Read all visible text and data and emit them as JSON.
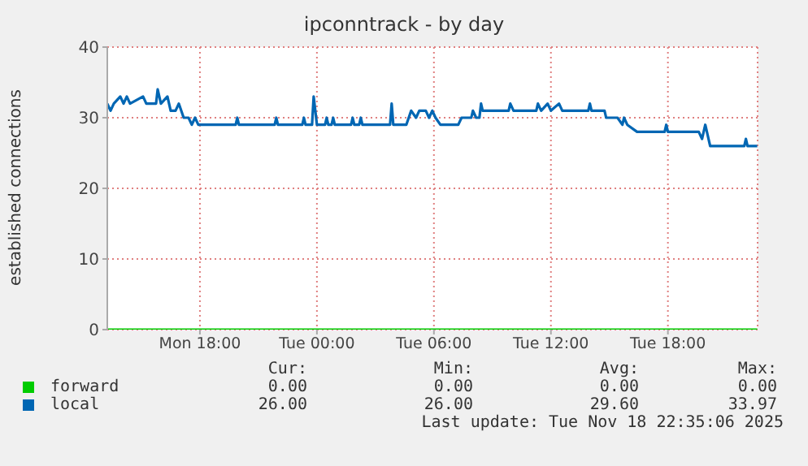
{
  "chart_data": {
    "type": "line",
    "title": "ipconntrack - by day",
    "ylabel": "established connections",
    "xlim": [
      "2025-11-17T13:15",
      "2025-11-18T22:36"
    ],
    "xticks": [
      {
        "value": "2025-11-17T18:00",
        "label": "Mon 18:00"
      },
      {
        "value": "2025-11-18T00:00",
        "label": "Tue 00:00"
      },
      {
        "value": "2025-11-18T06:00",
        "label": "Tue 06:00"
      },
      {
        "value": "2025-11-18T12:00",
        "label": "Tue 12:00"
      },
      {
        "value": "2025-11-18T18:00",
        "label": "Tue 18:00"
      }
    ],
    "ylim": [
      0,
      40
    ],
    "yticks": [
      0,
      10,
      20,
      30,
      40
    ],
    "grid": true,
    "legend": "bottom",
    "marker": "none",
    "line_style": "solid",
    "series": [
      {
        "name": "forward",
        "color": "#00cc00",
        "x": [
          "2025-11-17T13:15",
          "2025-11-18T22:35"
        ],
        "values": [
          0,
          0
        ]
      },
      {
        "name": "local",
        "color": "#0066b3",
        "x": [
          "2025-11-17T13:15",
          "2025-11-17T13:25",
          "2025-11-17T13:35",
          "2025-11-17T13:55",
          "2025-11-17T14:05",
          "2025-11-17T14:15",
          "2025-11-17T14:25",
          "2025-11-17T15:05",
          "2025-11-17T15:15",
          "2025-11-17T15:45",
          "2025-11-17T15:50",
          "2025-11-17T16:00",
          "2025-11-17T16:20",
          "2025-11-17T16:30",
          "2025-11-17T16:45",
          "2025-11-17T16:55",
          "2025-11-17T17:10",
          "2025-11-17T17:25",
          "2025-11-17T17:35",
          "2025-11-17T17:45",
          "2025-11-17T17:55",
          "2025-11-17T19:50",
          "2025-11-17T19:55",
          "2025-11-17T20:00",
          "2025-11-17T21:50",
          "2025-11-17T21:55",
          "2025-11-17T22:00",
          "2025-11-17T23:15",
          "2025-11-17T23:20",
          "2025-11-17T23:25",
          "2025-11-17T23:45",
          "2025-11-17T23:50",
          "2025-11-18T00:00",
          "2025-11-18T00:05",
          "2025-11-18T00:25",
          "2025-11-18T00:30",
          "2025-11-18T00:35",
          "2025-11-18T00:45",
          "2025-11-18T00:50",
          "2025-11-18T00:55",
          "2025-11-18T01:45",
          "2025-11-18T01:50",
          "2025-11-18T01:55",
          "2025-11-18T02:10",
          "2025-11-18T02:15",
          "2025-11-18T02:20",
          "2025-11-18T03:45",
          "2025-11-18T03:50",
          "2025-11-18T03:55",
          "2025-11-18T04:35",
          "2025-11-18T04:50",
          "2025-11-18T05:05",
          "2025-11-18T05:15",
          "2025-11-18T05:35",
          "2025-11-18T05:45",
          "2025-11-18T05:55",
          "2025-11-18T06:05",
          "2025-11-18T06:20",
          "2025-11-18T07:15",
          "2025-11-18T07:25",
          "2025-11-18T07:55",
          "2025-11-18T08:00",
          "2025-11-18T08:10",
          "2025-11-18T08:20",
          "2025-11-18T08:25",
          "2025-11-18T08:30",
          "2025-11-18T09:50",
          "2025-11-18T09:55",
          "2025-11-18T10:05",
          "2025-11-18T11:15",
          "2025-11-18T11:20",
          "2025-11-18T11:30",
          "2025-11-18T11:50",
          "2025-11-18T12:00",
          "2025-11-18T12:25",
          "2025-11-18T12:35",
          "2025-11-18T13:55",
          "2025-11-18T14:00",
          "2025-11-18T14:05",
          "2025-11-18T14:45",
          "2025-11-18T14:50",
          "2025-11-18T15:25",
          "2025-11-18T15:40",
          "2025-11-18T15:45",
          "2025-11-18T15:55",
          "2025-11-18T16:25",
          "2025-11-18T17:50",
          "2025-11-18T17:55",
          "2025-11-18T18:00",
          "2025-11-18T19:35",
          "2025-11-18T19:45",
          "2025-11-18T19:55",
          "2025-11-18T20:05",
          "2025-11-18T20:10",
          "2025-11-18T21:55",
          "2025-11-18T22:00",
          "2025-11-18T22:05",
          "2025-11-18T22:35"
        ],
        "values": [
          32,
          31,
          32,
          33,
          32,
          33,
          32,
          33,
          32,
          32,
          34,
          32,
          33,
          31,
          31,
          32,
          30,
          30,
          29,
          30,
          29,
          29,
          30,
          29,
          29,
          30,
          29,
          29,
          30,
          29,
          29,
          33,
          29,
          29,
          29,
          30,
          29,
          29,
          30,
          29,
          29,
          30,
          29,
          29,
          30,
          29,
          29,
          32,
          29,
          29,
          31,
          30,
          31,
          31,
          30,
          31,
          30,
          29,
          29,
          30,
          30,
          31,
          30,
          30,
          32,
          31,
          31,
          32,
          31,
          31,
          32,
          31,
          32,
          31,
          32,
          31,
          31,
          32,
          31,
          31,
          30,
          30,
          29,
          30,
          29,
          28,
          28,
          29,
          28,
          28,
          27,
          29,
          27,
          26,
          26,
          27,
          26,
          26
        ]
      }
    ],
    "annotations": [
      "Cur:",
      "Min:",
      "Avg:",
      "Max:",
      "0.00",
      "0.00",
      "0.00",
      "0.00",
      "26.00",
      "26.00",
      "29.60",
      "33.97",
      "Last update: Tue Nov 18 22:35:06 2025"
    ]
  }
}
